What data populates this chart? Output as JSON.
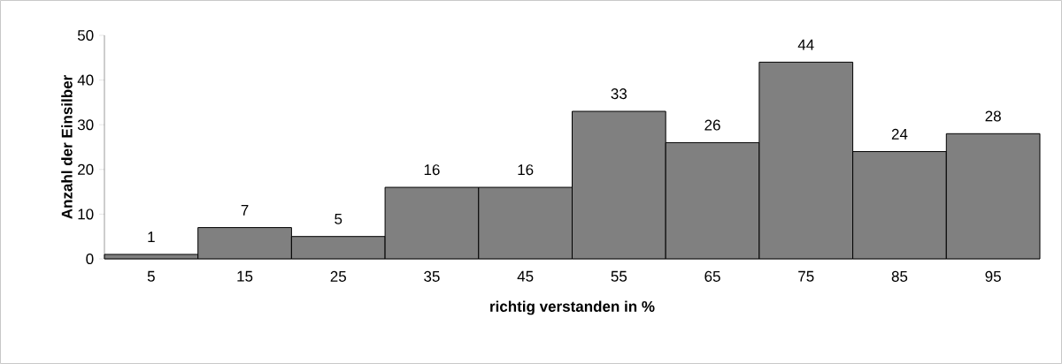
{
  "chart_data": {
    "type": "bar",
    "xlabel": "richtig verstanden in %",
    "ylabel": "Anzahl der Einsilber",
    "categories": [
      "5",
      "15",
      "25",
      "35",
      "45",
      "55",
      "65",
      "75",
      "85",
      "95"
    ],
    "values": [
      1,
      7,
      5,
      16,
      16,
      33,
      26,
      44,
      24,
      28
    ],
    "color": "#808080",
    "ylim": [
      0,
      50
    ],
    "yticks": [
      0,
      10,
      20,
      30,
      40,
      50
    ],
    "data_labels": true
  }
}
